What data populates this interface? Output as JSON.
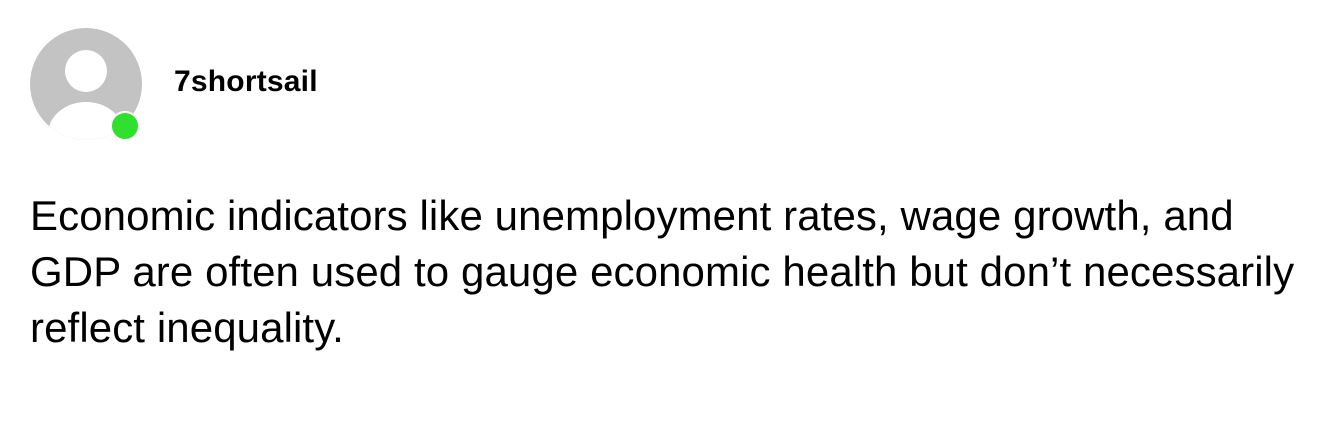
{
  "post": {
    "avatar_icon": "default-user-avatar-icon",
    "status": "online",
    "status_color": "#2fe02f",
    "username": "7shortsail",
    "text": "Economic indicators like unemployment rates, wage growth, and GDP are often used to gauge economic health but don’t necessarily reflect inequality."
  }
}
